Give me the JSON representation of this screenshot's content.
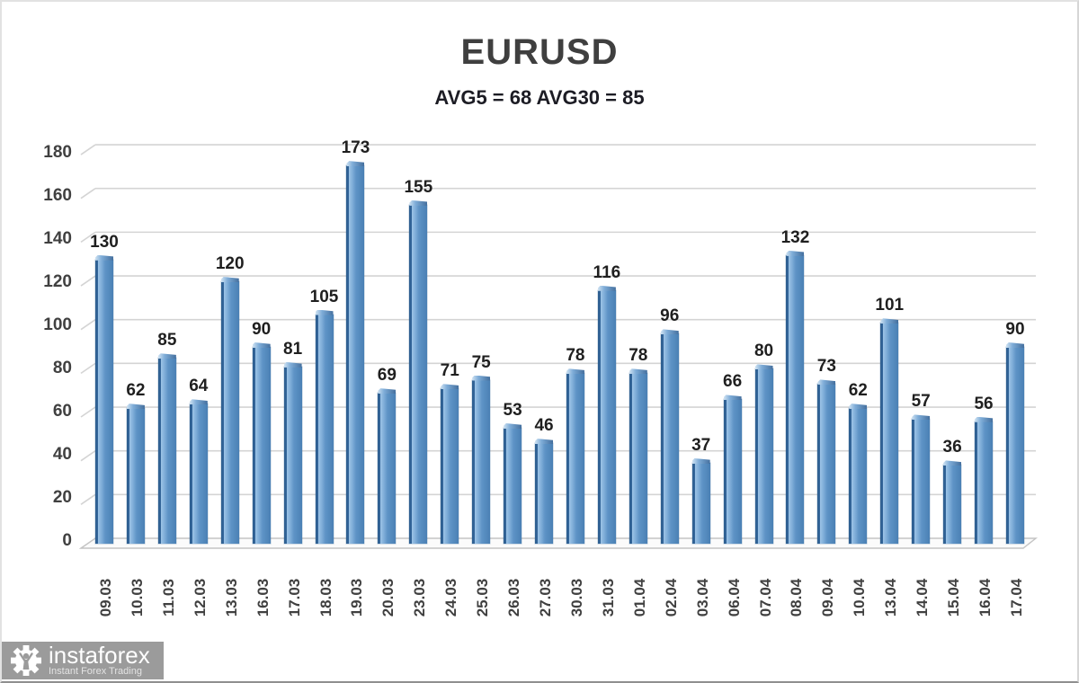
{
  "chart_data": {
    "type": "bar",
    "title": "EURUSD",
    "subtitle": "AVG5 = 68 AVG30 = 85",
    "categories": [
      "09.03",
      "10.03",
      "11.03",
      "12.03",
      "13.03",
      "16.03",
      "17.03",
      "18.03",
      "19.03",
      "20.03",
      "23.03",
      "24.03",
      "25.03",
      "26.03",
      "27.03",
      "30.03",
      "31.03",
      "01.04",
      "02.04",
      "03.04",
      "06.04",
      "07.04",
      "08.04",
      "09.04",
      "10.04",
      "13.04",
      "14.04",
      "15.04",
      "16.04",
      "17.04"
    ],
    "values": [
      130,
      62,
      85,
      64,
      120,
      90,
      81,
      105,
      173,
      69,
      155,
      71,
      75,
      53,
      46,
      78,
      116,
      78,
      96,
      37,
      66,
      80,
      132,
      73,
      62,
      101,
      57,
      36,
      56,
      90
    ],
    "ylim": [
      0,
      180
    ],
    "yticks": [
      0,
      20,
      40,
      60,
      80,
      100,
      120,
      140,
      160,
      180
    ],
    "xlabel": "",
    "ylabel": "",
    "grid": true,
    "legend": "none",
    "style": "3d-column",
    "data_labels": true
  },
  "colors": {
    "title": "#3f3f3f",
    "subtitle": "#1c1c24",
    "axis_labels": "#404040",
    "value_labels": "#1f1f1f",
    "gridline": "#d4d4d4",
    "bar_face_light": "#7fadd8",
    "bar_face_dark": "#4a80b4",
    "bar_edge": "#2d5d8e",
    "floor_fill": "#fbfbfb",
    "floor_stroke": "#c4c4c4",
    "watermark_band": "#9b9b9b"
  },
  "watermark": {
    "brand": "instaforex",
    "tagline": "Instant Forex Trading"
  }
}
